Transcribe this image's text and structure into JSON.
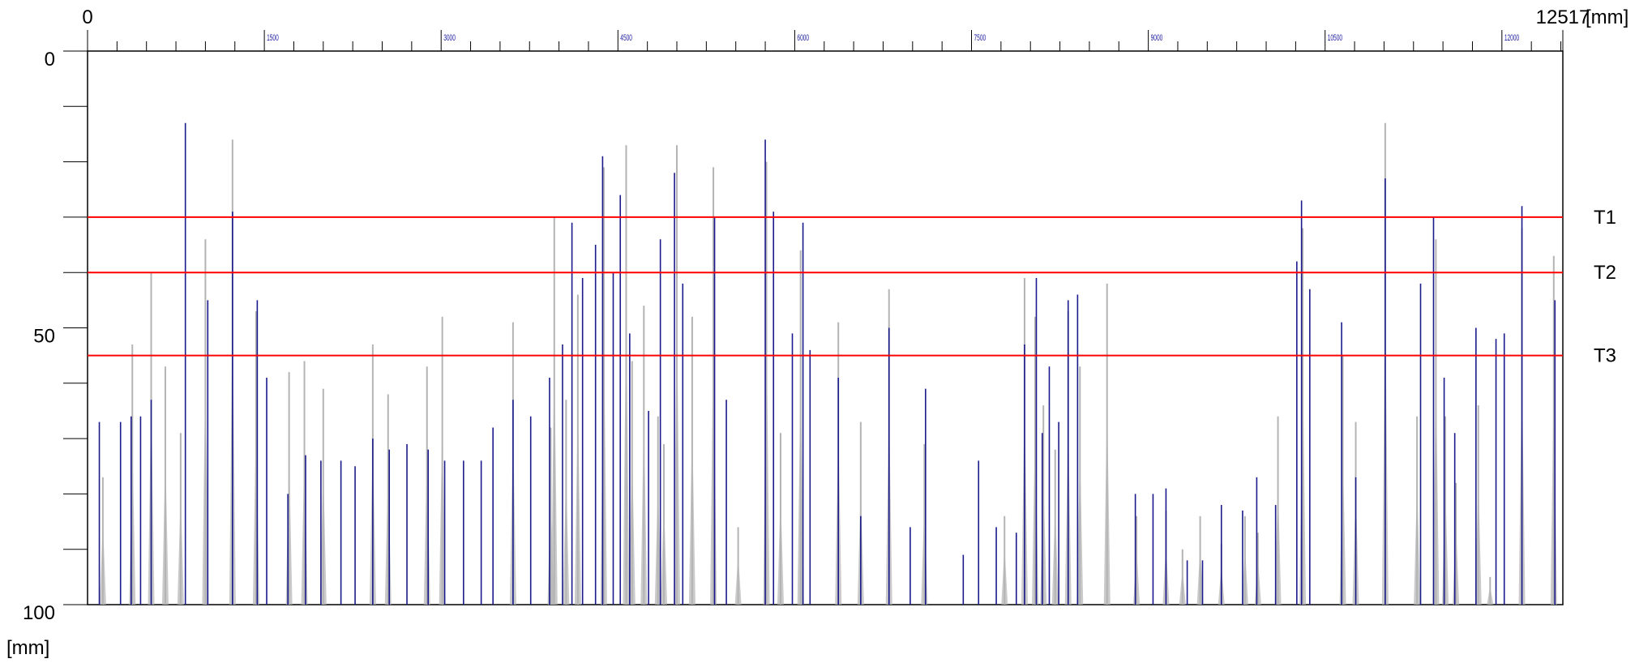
{
  "chart_data": {
    "type": "bar",
    "x_unit_label": "[mm]",
    "y_unit_label": "[mm]",
    "x_start_label": "0",
    "x_end_label": "12517",
    "xlim": [
      0,
      12517
    ],
    "ylim": [
      0,
      100
    ],
    "y_inverted": true,
    "x_ticks": [
      "1500",
      "3000",
      "4500",
      "6000",
      "7500",
      "9000",
      "10500",
      "12000"
    ],
    "y_ticks": [
      "0",
      "50",
      "100"
    ],
    "thresholds": [
      {
        "name": "T1",
        "value": 30
      },
      {
        "name": "T2",
        "value": 40
      },
      {
        "name": "T3",
        "value": 55
      }
    ],
    "colors": {
      "primary": "#1a1a8c",
      "secondary": "#b4b4b4",
      "threshold": "#ff0000",
      "axis": "#000000"
    },
    "series": [
      {
        "points": [
          [
            100,
            67
          ],
          [
            280,
            67
          ],
          [
            370,
            66
          ],
          [
            450,
            66
          ],
          [
            540,
            63
          ],
          [
            830,
            13
          ],
          [
            1020,
            45
          ],
          [
            1230,
            29
          ],
          [
            1440,
            45
          ],
          [
            1520,
            59
          ],
          [
            1700,
            80
          ],
          [
            1850,
            73
          ],
          [
            1980,
            74
          ],
          [
            2150,
            74
          ],
          [
            2270,
            75
          ],
          [
            2420,
            70
          ],
          [
            2560,
            72
          ],
          [
            2710,
            71
          ],
          [
            2890,
            72
          ],
          [
            3030,
            74
          ],
          [
            3190,
            74
          ],
          [
            3340,
            74
          ],
          [
            3440,
            68
          ],
          [
            3610,
            63
          ],
          [
            3760,
            66
          ],
          [
            3920,
            59
          ],
          [
            4030,
            53
          ],
          [
            4110,
            31
          ],
          [
            4200,
            41
          ],
          [
            4310,
            35
          ],
          [
            4370,
            19
          ],
          [
            4460,
            40
          ],
          [
            4520,
            26
          ],
          [
            4600,
            51
          ],
          [
            4760,
            65
          ],
          [
            4860,
            34
          ],
          [
            4980,
            22
          ],
          [
            5050,
            42
          ],
          [
            5320,
            30
          ],
          [
            5420,
            63
          ],
          [
            5750,
            16
          ],
          [
            5820,
            29
          ],
          [
            5980,
            51
          ],
          [
            6070,
            31
          ],
          [
            6130,
            54
          ],
          [
            6370,
            59
          ],
          [
            6560,
            84
          ],
          [
            6800,
            50
          ],
          [
            6980,
            86
          ],
          [
            7110,
            61
          ],
          [
            7430,
            91
          ],
          [
            7560,
            74
          ],
          [
            7710,
            86
          ],
          [
            7880,
            87
          ],
          [
            7950,
            53
          ],
          [
            8050,
            41
          ],
          [
            8100,
            69
          ],
          [
            8160,
            57
          ],
          [
            8240,
            67
          ],
          [
            8320,
            45
          ],
          [
            8400,
            44
          ],
          [
            8890,
            80
          ],
          [
            9040,
            80
          ],
          [
            9150,
            79
          ],
          [
            9330,
            92
          ],
          [
            9460,
            92
          ],
          [
            9620,
            82
          ],
          [
            9800,
            83
          ],
          [
            9920,
            77
          ],
          [
            10080,
            82
          ],
          [
            10260,
            38
          ],
          [
            10300,
            27
          ],
          [
            10370,
            43
          ],
          [
            10640,
            49
          ],
          [
            10760,
            77
          ],
          [
            11010,
            23
          ],
          [
            11310,
            42
          ],
          [
            11420,
            30
          ],
          [
            11510,
            59
          ],
          [
            11600,
            69
          ],
          [
            11780,
            50
          ],
          [
            11950,
            52
          ],
          [
            12020,
            51
          ],
          [
            12170,
            28
          ],
          [
            12450,
            45
          ]
        ]
      },
      {
        "points": [
          [
            130,
            77
          ],
          [
            380,
            53
          ],
          [
            540,
            40
          ],
          [
            660,
            57
          ],
          [
            790,
            69
          ],
          [
            1000,
            34
          ],
          [
            1230,
            16
          ],
          [
            1430,
            47
          ],
          [
            1710,
            58
          ],
          [
            1840,
            56
          ],
          [
            2000,
            61
          ],
          [
            2420,
            53
          ],
          [
            2550,
            62
          ],
          [
            2880,
            57
          ],
          [
            3010,
            48
          ],
          [
            3610,
            49
          ],
          [
            3930,
            68
          ],
          [
            3960,
            30
          ],
          [
            4060,
            63
          ],
          [
            4160,
            44
          ],
          [
            4380,
            21
          ],
          [
            4570,
            17
          ],
          [
            4620,
            56
          ],
          [
            4720,
            46
          ],
          [
            4840,
            66
          ],
          [
            4890,
            71
          ],
          [
            5000,
            17
          ],
          [
            5130,
            48
          ],
          [
            5310,
            21
          ],
          [
            5520,
            86
          ],
          [
            5760,
            20
          ],
          [
            5880,
            69
          ],
          [
            6050,
            36
          ],
          [
            6370,
            49
          ],
          [
            6560,
            67
          ],
          [
            6800,
            43
          ],
          [
            7100,
            71
          ],
          [
            7780,
            84
          ],
          [
            7950,
            41
          ],
          [
            8040,
            48
          ],
          [
            8110,
            64
          ],
          [
            8210,
            72
          ],
          [
            8320,
            47
          ],
          [
            8420,
            57
          ],
          [
            8650,
            42
          ],
          [
            8900,
            84
          ],
          [
            9150,
            83
          ],
          [
            9290,
            90
          ],
          [
            9440,
            84
          ],
          [
            9620,
            89
          ],
          [
            9820,
            84
          ],
          [
            9930,
            87
          ],
          [
            10100,
            66
          ],
          [
            10310,
            32
          ],
          [
            10650,
            55
          ],
          [
            10760,
            67
          ],
          [
            11010,
            13
          ],
          [
            11280,
            66
          ],
          [
            11440,
            34
          ],
          [
            11520,
            66
          ],
          [
            11610,
            78
          ],
          [
            11800,
            64
          ],
          [
            11900,
            95
          ],
          [
            12170,
            32
          ],
          [
            12440,
            37
          ]
        ]
      }
    ]
  }
}
